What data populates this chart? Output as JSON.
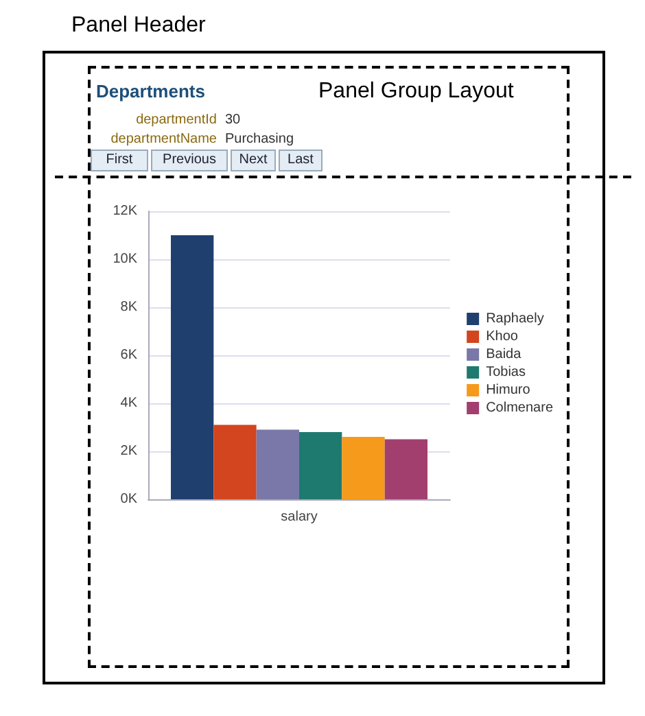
{
  "chart_data": {
    "type": "bar",
    "categories": [
      "salary"
    ],
    "series": [
      {
        "name": "Raphaely",
        "color": "#1f3f6e",
        "values": [
          11000
        ]
      },
      {
        "name": "Khoo",
        "color": "#d2451e",
        "values": [
          3100
        ]
      },
      {
        "name": "Baida",
        "color": "#7a78a8",
        "values": [
          2900
        ]
      },
      {
        "name": "Tobias",
        "color": "#1e7a6e",
        "values": [
          2800
        ]
      },
      {
        "name": "Himuro",
        "color": "#f59a1a",
        "values": [
          2600
        ]
      },
      {
        "name": "Colmenare",
        "color": "#a23f6e",
        "values": [
          2500
        ]
      }
    ],
    "ylim": [
      0,
      12000
    ],
    "yticks": [
      {
        "value": 0,
        "label": "0K"
      },
      {
        "value": 2000,
        "label": "2K"
      },
      {
        "value": 4000,
        "label": "4K"
      },
      {
        "value": 6000,
        "label": "6K"
      },
      {
        "value": 8000,
        "label": "8K"
      },
      {
        "value": 10000,
        "label": "10K"
      },
      {
        "value": 12000,
        "label": "12K"
      }
    ],
    "grid": "y",
    "legend": "right",
    "annotations": [
      "Panel Header",
      "Panel Group Layout",
      "Departments",
      "departmentId",
      "30",
      "departmentName",
      "Purchasing",
      "First",
      "Previous",
      "Next",
      "Last"
    ]
  }
}
